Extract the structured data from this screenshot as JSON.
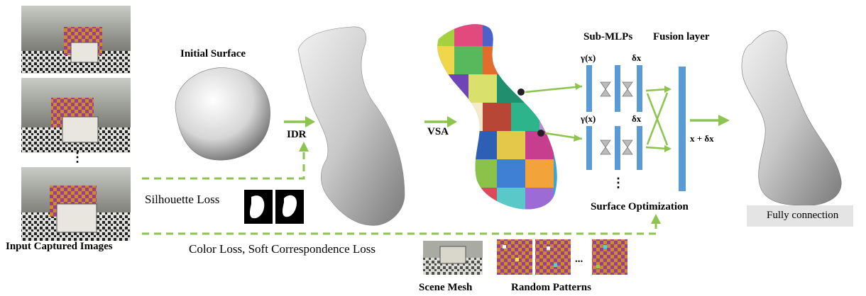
{
  "labels": {
    "initial_surface": "Initial Surface",
    "idr": "IDR",
    "vsa": "VSA",
    "sub_mlps": "Sub-MLPs",
    "fusion_layer": "Fusion layer",
    "gamma_top": "γ(x)",
    "gamma_bottom": "γ(x)",
    "delta_top": "δx",
    "delta_bottom": "δx",
    "x_plus_delta": "x + δx",
    "surface_optimization": "Surface  Optimization",
    "silhouette_loss": "Silhouette Loss",
    "color_loss": "Color Loss, Soft Correspondence Loss",
    "input_images": "Input Captured Images",
    "scene_mesh": "Scene Mesh",
    "random_patterns": "Random Patterns",
    "ellipsis_v": "⋮",
    "ellipsis_h": "...",
    "legend": "Fully connection"
  },
  "colors": {
    "arrow_green": "#8dc44f",
    "mlp_blue": "#5b9bd5",
    "pattern_purple": "#9a3f8a",
    "pattern_orange": "#cf8a2e"
  }
}
